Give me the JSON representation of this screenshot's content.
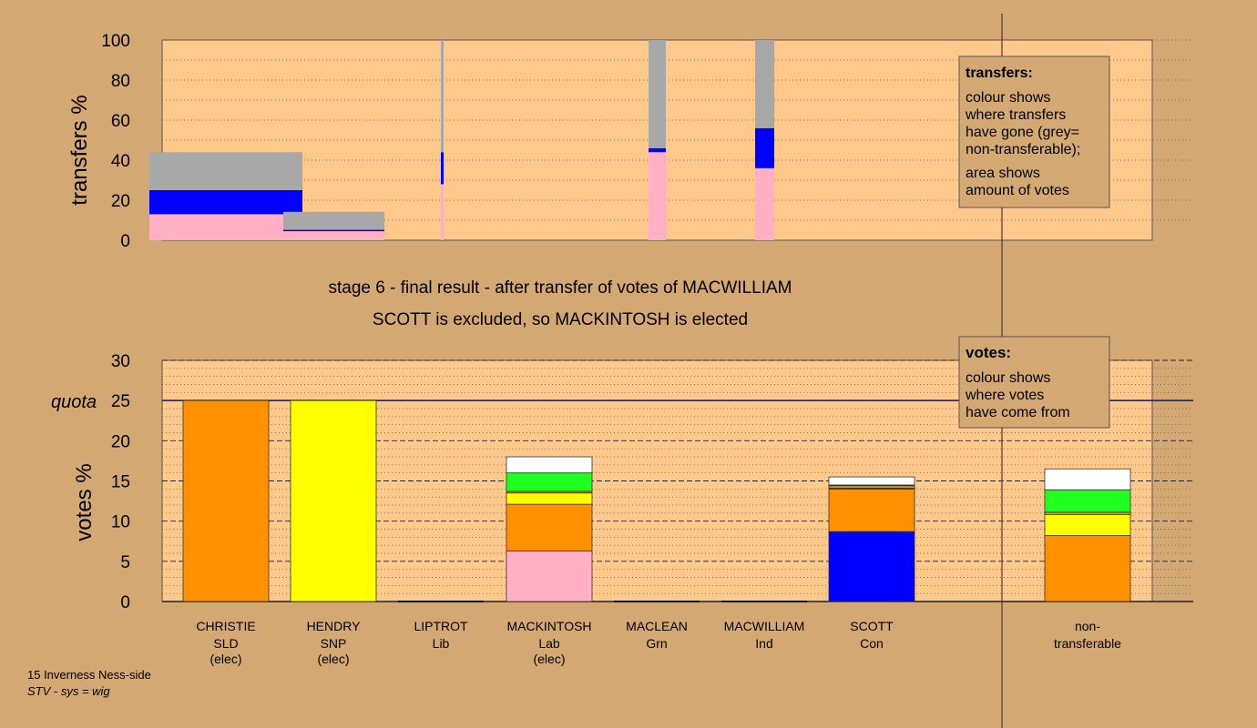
{
  "colors": {
    "background": "#d4a872",
    "plot_bg": "#ffc98c",
    "SLD": "#ff9000",
    "SNP": "#ffff00",
    "Lab": "#ffb0c4",
    "Grn": "#20ff20",
    "Con": "#0000ff",
    "Lib": "#d4a020",
    "Ind": "#ffffff",
    "nontransferable": "#a8a8a8",
    "quota_line": "#1a1a50"
  },
  "heading": {
    "line1": "stage 6 - final result - after transfer of votes of MACWILLIAM",
    "line2": "SCOTT is excluded, so MACKINTOSH is elected"
  },
  "footer": {
    "ward": "15 Inverness Ness-side",
    "system": "STV - sys = wig"
  },
  "legend_transfers": {
    "title": "transfers:",
    "lines1": [
      "colour shows",
      "where transfers",
      "have gone (grey=",
      "non-transferable);"
    ],
    "lines2": [
      "area shows",
      "amount of votes"
    ]
  },
  "legend_votes": {
    "title": "votes:",
    "lines": [
      "colour shows",
      "where votes",
      "have come from"
    ]
  },
  "chart_data": [
    {
      "type": "bar",
      "subtype": "stacked-variable-width",
      "ylabel": "transfers %",
      "ylim": [
        0,
        100
      ],
      "yticks": [
        0,
        20,
        40,
        60,
        80,
        100
      ],
      "grid": "dotted",
      "transfers": [
        {
          "from": "CHRISTIE",
          "segments": [
            {
              "to": "Lab",
              "value": 13
            },
            {
              "to": "Con",
              "value": 12
            },
            {
              "to": "nontransferable",
              "value": 19
            }
          ]
        },
        {
          "from": "HENDRY",
          "segments": [
            {
              "to": "Lab",
              "value": 4.5
            },
            {
              "to": "Con",
              "value": 0.7
            },
            {
              "to": "nontransferable",
              "value": 9
            }
          ]
        },
        {
          "from": "LIPTROT",
          "segments": [
            {
              "to": "Lab",
              "value": 28
            },
            {
              "to": "Con",
              "value": 16
            },
            {
              "to": "nontransferable",
              "value": 56
            }
          ]
        },
        {
          "from": "MACLEAN",
          "segments": [
            {
              "to": "Lab",
              "value": 44
            },
            {
              "to": "Con",
              "value": 2
            },
            {
              "to": "nontransferable",
              "value": 54
            }
          ]
        },
        {
          "from": "MACWILLIAM",
          "segments": [
            {
              "to": "Lab",
              "value": 36
            },
            {
              "to": "Con",
              "value": 20
            },
            {
              "to": "nontransferable",
              "value": 44
            }
          ]
        }
      ]
    },
    {
      "type": "bar",
      "subtype": "stacked",
      "ylabel": "votes %",
      "ylim": [
        0,
        30
      ],
      "yticks": [
        0,
        5,
        10,
        15,
        20,
        25,
        30
      ],
      "quota": 25,
      "quota_label": "quota",
      "categories": [
        {
          "name": "CHRISTIE",
          "party": "SLD",
          "status": "(elec)",
          "segments": [
            {
              "from": "SLD",
              "value": 25
            }
          ]
        },
        {
          "name": "HENDRY",
          "party": "SNP",
          "status": "(elec)",
          "segments": [
            {
              "from": "SNP",
              "value": 25
            }
          ]
        },
        {
          "name": "LIPTROT",
          "party": "Lib",
          "status": "",
          "segments": []
        },
        {
          "name": "MACKINTOSH",
          "party": "Lab",
          "status": "(elec)",
          "segments": [
            {
              "from": "Lab",
              "value": 6.3
            },
            {
              "from": "SLD",
              "value": 5.8
            },
            {
              "from": "SNP",
              "value": 1.4
            },
            {
              "from": "Lib",
              "value": 0.2
            },
            {
              "from": "Grn",
              "value": 2.3
            },
            {
              "from": "Ind",
              "value": 2.0
            }
          ]
        },
        {
          "name": "MACLEAN",
          "party": "Grn",
          "status": "",
          "segments": []
        },
        {
          "name": "MACWILLIAM",
          "party": "Ind",
          "status": "",
          "segments": []
        },
        {
          "name": "SCOTT",
          "party": "Con",
          "status": "",
          "segments": [
            {
              "from": "Con",
              "value": 8.7
            },
            {
              "from": "SLD",
              "value": 5.3
            },
            {
              "from": "SNP",
              "value": 0.1
            },
            {
              "from": "Lib",
              "value": 0.3
            },
            {
              "from": "Grn",
              "value": 0.1
            },
            {
              "from": "Ind",
              "value": 1.0
            }
          ]
        },
        {
          "name": "non-",
          "party": "transferable",
          "status": "",
          "segments": [
            {
              "from": "SLD",
              "value": 8.2
            },
            {
              "from": "SNP",
              "value": 2.6
            },
            {
              "from": "Lib",
              "value": 0.3
            },
            {
              "from": "Grn",
              "value": 2.8
            },
            {
              "from": "Ind",
              "value": 2.6
            }
          ]
        }
      ]
    }
  ]
}
